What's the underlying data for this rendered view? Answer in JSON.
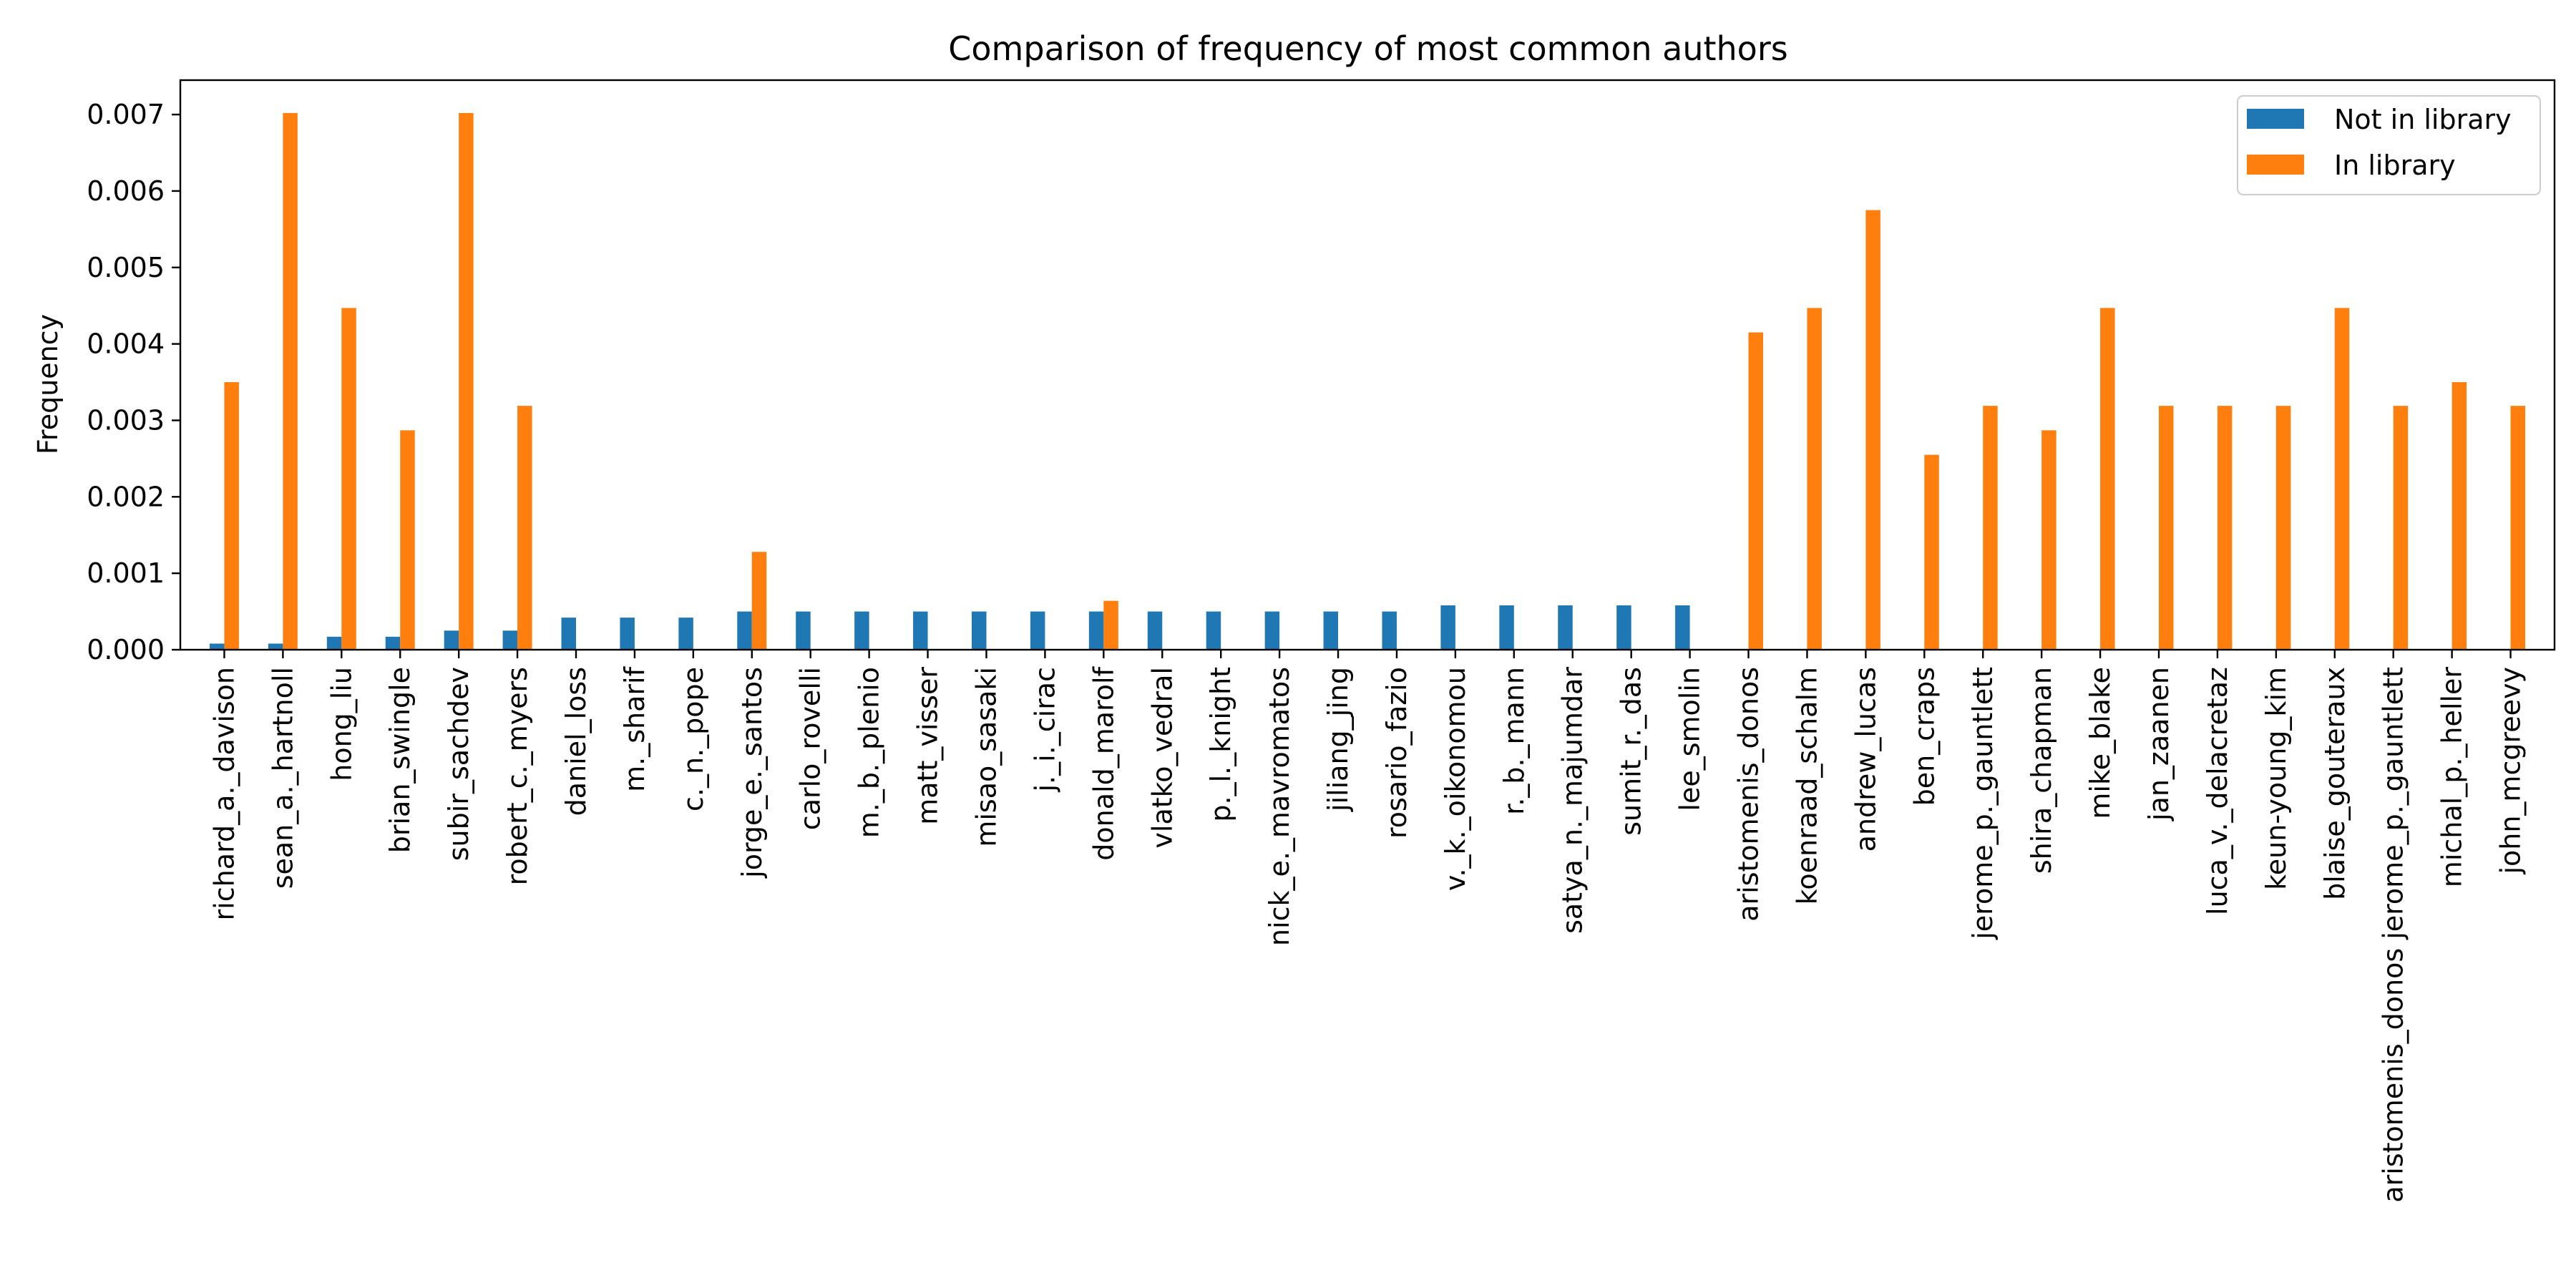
{
  "chart_data": {
    "type": "bar",
    "title": "Comparison of frequency of most common authors",
    "xlabel": "",
    "ylabel": "Frequency",
    "ylim": [
      0,
      0.00745
    ],
    "yticks": [
      0.0,
      0.001,
      0.002,
      0.003,
      0.004,
      0.005,
      0.006,
      0.007
    ],
    "ytick_labels": [
      "0.000",
      "0.001",
      "0.002",
      "0.003",
      "0.004",
      "0.005",
      "0.006",
      "0.007"
    ],
    "legend_position": "top-right",
    "grid": false,
    "categories": [
      "richard_a._davison",
      "sean_a._hartnoll",
      "hong_liu",
      "brian_swingle",
      "subir_sachdev",
      "robert_c._myers",
      "daniel_loss",
      "m._sharif",
      "c._n._pope",
      "jorge_e._santos",
      "carlo_rovelli",
      "m._b._plenio",
      "matt_visser",
      "misao_sasaki",
      "j._i._cirac",
      "donald_marolf",
      "vlatko_vedral",
      "p._l._knight",
      "nick_e._mavromatos",
      "jiliang_jing",
      "rosario_fazio",
      "v._k._oikonomou",
      "r._b._mann",
      "satya_n._majumdar",
      "sumit_r._das",
      "lee_smolin",
      "aristomenis_donos",
      "koenraad_schalm",
      "andrew_lucas",
      "ben_craps",
      "jerome_p._gauntlett",
      "shira_chapman",
      "mike_blake",
      "jan_zaanen",
      "luca_v._delacretaz",
      "keun-young_kim",
      "blaise_gouteraux",
      "aristomenis_donos jerome_p._gauntlett",
      "michal_p._heller",
      "john_mcgreevy"
    ],
    "series": [
      {
        "name": "Not in library",
        "color": "#1f77b4",
        "values": [
          8e-05,
          8e-05,
          0.00017,
          0.00017,
          0.00025,
          0.00025,
          0.00042,
          0.00042,
          0.00042,
          0.0005,
          0.0005,
          0.0005,
          0.0005,
          0.0005,
          0.0005,
          0.0005,
          0.0005,
          0.0005,
          0.0005,
          0.0005,
          0.0005,
          0.00058,
          0.00058,
          0.00058,
          0.00058,
          0.00058,
          0,
          0,
          0,
          0,
          0,
          0,
          0,
          0,
          0,
          0,
          0,
          0,
          0,
          0
        ]
      },
      {
        "name": "In library",
        "color": "#ff7f0e",
        "values": [
          0.0035,
          0.00702,
          0.00447,
          0.00287,
          0.00702,
          0.00319,
          0,
          0,
          0,
          0.00128,
          0,
          0,
          0,
          0,
          0,
          0.00064,
          0,
          0,
          0,
          0,
          0,
          0,
          0,
          0,
          0,
          0,
          0.00415,
          0.00447,
          0.00575,
          0.00255,
          0.00319,
          0.00287,
          0.00447,
          0.00319,
          0.00319,
          0.00319,
          0.00447,
          0.00319,
          0.0035,
          0.00319
        ]
      }
    ]
  }
}
